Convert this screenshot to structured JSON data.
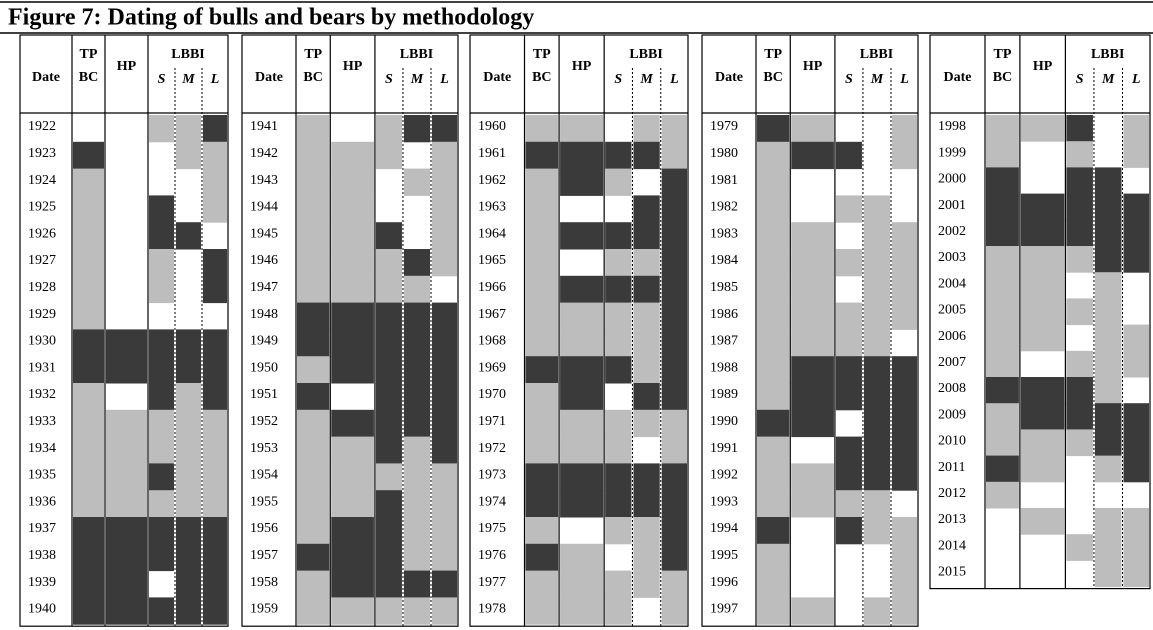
{
  "title": "Figure 7: Dating of bulls and bears by methodology",
  "header": {
    "date": "Date",
    "tpbc": [
      "TP",
      "BC"
    ],
    "hp": "HP",
    "lbbi": "LBBI",
    "sub": [
      "S",
      "M",
      "L"
    ]
  },
  "panels": [
    {
      "years": [
        1922,
        1923,
        1924,
        1925,
        1926,
        1927,
        1928,
        1929,
        1930,
        1931,
        1932,
        1933,
        1934,
        1935,
        1936,
        1937,
        1938,
        1939,
        1940
      ]
    },
    {
      "years": [
        1941,
        1942,
        1943,
        1944,
        1945,
        1946,
        1947,
        1948,
        1949,
        1950,
        1951,
        1952,
        1953,
        1954,
        1955,
        1956,
        1957,
        1958,
        1959
      ]
    },
    {
      "years": [
        1960,
        1961,
        1962,
        1963,
        1964,
        1965,
        1966,
        1967,
        1968,
        1969,
        1970,
        1971,
        1972,
        1973,
        1974,
        1975,
        1976,
        1977,
        1978
      ]
    },
    {
      "years": [
        1979,
        1980,
        1981,
        1982,
        1983,
        1984,
        1985,
        1986,
        1987,
        1988,
        1989,
        1990,
        1991,
        1992,
        1993,
        1994,
        1995,
        1996,
        1997
      ]
    },
    {
      "years": [
        1998,
        1999,
        2000,
        2001,
        2002,
        2003,
        2004,
        2005,
        2006,
        2007,
        2008,
        2009,
        2010,
        2011,
        2012,
        2013,
        2014,
        2015
      ]
    }
  ]
}
